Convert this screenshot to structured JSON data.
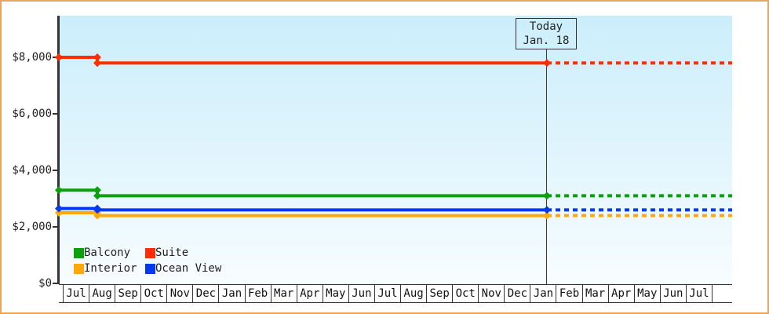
{
  "chart_data": {
    "type": "line",
    "title": "",
    "description": "Cruise cabin price history by category with dotted forecast after today marker",
    "today_box": {
      "line1": "Today",
      "line2": "Jan. 18"
    },
    "y_axis": {
      "ticks": [
        {
          "label": "$8,000",
          "value": 8000
        },
        {
          "label": "$6,000",
          "value": 6000
        },
        {
          "label": "$4,000",
          "value": 4000
        },
        {
          "label": "$2,000",
          "value": 2000
        },
        {
          "label": "$0",
          "value": 0
        }
      ],
      "ylim": [
        0,
        8400
      ],
      "grid": false
    },
    "x_axis": {
      "months": [
        "Jul",
        "Aug",
        "Sep",
        "Oct",
        "Nov",
        "Dec",
        "Jan",
        "Feb",
        "Mar",
        "Apr",
        "May",
        "Jun",
        "Jul",
        "Aug",
        "Sep",
        "Oct",
        "Nov",
        "Dec",
        "Jan",
        "Feb",
        "Mar",
        "Apr",
        "May",
        "Jun",
        "Jul"
      ]
    },
    "legend_position": "bottom-left-inside",
    "series": [
      {
        "name": "Balcony",
        "color": "#0CA00C",
        "points": [
          {
            "x": "Jul",
            "value": 3300
          },
          {
            "x": "Aug",
            "value": 3100
          },
          {
            "x": "Today (Jan. 18)",
            "value": 3100
          }
        ],
        "forecast": {
          "value": 3100,
          "style": "dotted"
        }
      },
      {
        "name": "Suite",
        "color": "#FF2D00",
        "points": [
          {
            "x": "Jul",
            "value": 8000
          },
          {
            "x": "Aug",
            "value": 7800
          },
          {
            "x": "Today (Jan. 18)",
            "value": 7800
          }
        ],
        "forecast": {
          "value": 7800,
          "style": "dotted"
        }
      },
      {
        "name": "Interior",
        "color": "#FFA80A",
        "points": [
          {
            "x": "Jul",
            "value": 2500
          },
          {
            "x": "Aug",
            "value": 2400
          },
          {
            "x": "Today (Jan. 18)",
            "value": 2400
          }
        ],
        "forecast": {
          "value": 2400,
          "style": "dotted"
        }
      },
      {
        "name": "Ocean View",
        "color": "#0439EE",
        "points": [
          {
            "x": "Jul",
            "value": 2650
          },
          {
            "x": "Aug",
            "value": 2600
          },
          {
            "x": "Today (Jan. 18)",
            "value": 2600
          }
        ],
        "forecast": {
          "value": 2600,
          "style": "dotted"
        }
      }
    ]
  },
  "colors": {
    "frame_border": "#EAA65A",
    "plot_gradient_top": "#CBEEFB",
    "plot_gradient_bottom": "#F8FDFF",
    "axis": "#333333",
    "text": "#222222"
  }
}
